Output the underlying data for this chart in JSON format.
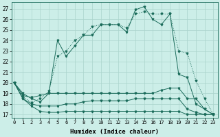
{
  "xlabel": "Humidex (Indice chaleur)",
  "bg_color": "#cceee8",
  "grid_color": "#aad4cc",
  "line_color": "#1a6b5a",
  "x_ticks": [
    0,
    1,
    2,
    3,
    4,
    5,
    6,
    7,
    8,
    9,
    10,
    11,
    12,
    13,
    14,
    15,
    16,
    17,
    18,
    19,
    20,
    21,
    22,
    23
  ],
  "y_ticks": [
    17,
    18,
    19,
    20,
    21,
    22,
    23,
    24,
    25,
    26,
    27
  ],
  "ylim": [
    16.7,
    27.6
  ],
  "xlim": [
    -0.3,
    23.5
  ],
  "x": [
    0,
    1,
    2,
    3,
    4,
    5,
    6,
    7,
    8,
    9,
    10,
    11,
    12,
    13,
    14,
    15,
    16,
    17,
    18,
    19,
    20,
    21,
    22,
    23
  ],
  "s1_jagged": [
    20.0,
    19.0,
    18.5,
    18.2,
    19.0,
    24.0,
    22.5,
    23.5,
    24.5,
    24.5,
    25.5,
    25.5,
    25.5,
    24.8,
    26.9,
    27.2,
    26.0,
    25.5,
    26.5,
    20.8,
    20.5,
    18.0,
    17.5,
    17.0
  ],
  "s2_smooth": [
    20.0,
    18.7,
    18.1,
    18.5,
    19.2,
    22.5,
    23.0,
    24.0,
    24.5,
    25.3,
    25.5,
    25.5,
    25.5,
    25.2,
    26.5,
    26.7,
    26.5,
    26.5,
    26.5,
    23.0,
    22.8,
    20.2,
    18.5,
    17.0
  ],
  "s3_upper_flat": [
    20.0,
    18.8,
    18.6,
    18.8,
    19.0,
    19.0,
    19.0,
    19.0,
    19.0,
    19.0,
    19.0,
    19.0,
    19.0,
    19.0,
    19.0,
    19.0,
    19.0,
    19.3,
    19.5,
    19.5,
    18.5,
    18.5,
    17.5,
    17.0
  ],
  "s4_mid_flat": [
    20.0,
    18.5,
    18.0,
    17.8,
    17.8,
    17.8,
    18.0,
    18.0,
    18.2,
    18.3,
    18.3,
    18.3,
    18.3,
    18.3,
    18.5,
    18.5,
    18.5,
    18.5,
    18.5,
    18.5,
    17.5,
    17.2,
    17.0,
    17.0
  ],
  "s5_low_flat": [
    20.0,
    18.5,
    17.8,
    17.3,
    17.2,
    17.2,
    17.3,
    17.3,
    17.3,
    17.3,
    17.3,
    17.3,
    17.3,
    17.3,
    17.3,
    17.3,
    17.3,
    17.3,
    17.3,
    17.3,
    17.0,
    17.0,
    17.0,
    17.0
  ]
}
